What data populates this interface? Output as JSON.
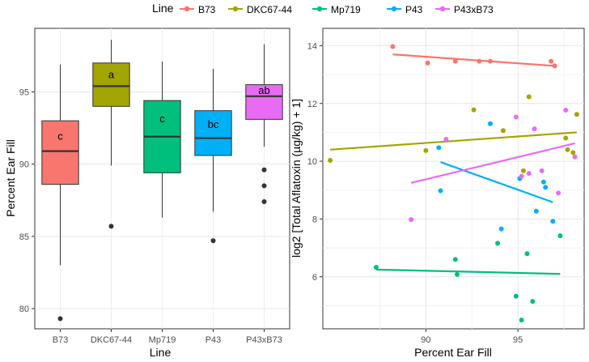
{
  "legend": {
    "title": "Line",
    "entries": [
      {
        "label": "B73",
        "color": "#F8766D"
      },
      {
        "label": "DKC67-44",
        "color": "#A3A500"
      },
      {
        "label": "Mp719",
        "color": "#00BF7D"
      },
      {
        "label": "P43",
        "color": "#00B0F6"
      },
      {
        "label": "P43xB73",
        "color": "#E76BF3"
      }
    ]
  },
  "chart_data": [
    {
      "type": "box",
      "xlabel": "Line",
      "ylabel": "Percent Ear Fill",
      "ylim": [
        78.6,
        99.4
      ],
      "yticks": [
        80,
        85,
        90,
        95
      ],
      "categories": [
        "B73",
        "DKC67-44",
        "Mp719",
        "P43",
        "P43xB73"
      ],
      "boxes": [
        {
          "name": "B73",
          "color": "#F8766D",
          "whisker_low": 83.0,
          "q1": 88.6,
          "median": 90.9,
          "q3": 93.0,
          "whisker_high": 96.9,
          "outliers": [
            79.3
          ],
          "group_label": "c"
        },
        {
          "name": "DKC67-44",
          "color": "#A3A500",
          "whisker_low": 89.9,
          "q1": 94.0,
          "median": 95.4,
          "q3": 97.0,
          "whisker_high": 98.6,
          "outliers": [
            85.7
          ],
          "group_label": "a"
        },
        {
          "name": "Mp719",
          "color": "#00BF7D",
          "whisker_low": 86.3,
          "q1": 89.4,
          "median": 91.9,
          "q3": 94.4,
          "whisker_high": 97.1,
          "outliers": [],
          "group_label": "c"
        },
        {
          "name": "P43",
          "color": "#00B0F6",
          "whisker_low": 86.7,
          "q1": 90.6,
          "median": 91.8,
          "q3": 93.7,
          "whisker_high": 96.6,
          "outliers": [
            84.7
          ],
          "group_label": "bc"
        },
        {
          "name": "P43xB73",
          "color": "#E76BF3",
          "whisker_low": 91.2,
          "q1": 93.1,
          "median": 94.7,
          "q3": 95.5,
          "whisker_high": 98.3,
          "outliers": [
            89.6,
            88.5,
            87.4
          ],
          "group_label": "ab"
        }
      ]
    },
    {
      "type": "scatter",
      "xlabel": "Percent Ear Fill",
      "ylabel": "log2 [Total Aflatoxin (µg/kg) + 1]",
      "xlim": [
        84.4,
        98.6
      ],
      "ylim": [
        4.2,
        14.6
      ],
      "xticks": [
        90,
        95
      ],
      "yticks": [
        6,
        8,
        10,
        12,
        14
      ],
      "series": [
        {
          "name": "B73",
          "color": "#F8766D",
          "points": [
            [
              88.2,
              13.97
            ],
            [
              90.1,
              13.4
            ],
            [
              91.6,
              13.46
            ],
            [
              92.9,
              13.46
            ],
            [
              93.5,
              13.46
            ],
            [
              96.8,
              13.46
            ],
            [
              97.0,
              13.3
            ]
          ],
          "fit": [
            [
              88.2,
              13.7
            ],
            [
              97.0,
              13.3
            ]
          ]
        },
        {
          "name": "DKC67-44",
          "color": "#A3A500",
          "points": [
            [
              84.8,
              10.03
            ],
            [
              90.0,
              10.37
            ],
            [
              92.6,
              11.78
            ],
            [
              94.2,
              11.06
            ],
            [
              95.3,
              9.67
            ],
            [
              95.6,
              12.23
            ],
            [
              97.6,
              10.8
            ],
            [
              97.7,
              10.4
            ],
            [
              98.0,
              10.3
            ],
            [
              98.2,
              11.62
            ]
          ],
          "fit": [
            [
              84.8,
              10.4
            ],
            [
              98.2,
              11.0
            ]
          ]
        },
        {
          "name": "Mp719",
          "color": "#00BF7D",
          "points": [
            [
              87.3,
              6.33
            ],
            [
              91.6,
              6.6
            ],
            [
              91.7,
              6.08
            ],
            [
              93.9,
              7.16
            ],
            [
              94.9,
              5.33
            ],
            [
              95.2,
              4.5
            ],
            [
              95.5,
              6.8
            ],
            [
              95.8,
              5.15
            ],
            [
              97.3,
              7.42
            ]
          ],
          "fit": [
            [
              87.3,
              6.25
            ],
            [
              97.3,
              6.1
            ]
          ]
        },
        {
          "name": "P43",
          "color": "#00B0F6",
          "points": [
            [
              90.7,
              10.47
            ],
            [
              90.8,
              8.98
            ],
            [
              93.5,
              11.3
            ],
            [
              94.1,
              7.66
            ],
            [
              95.1,
              9.4
            ],
            [
              96.0,
              8.27
            ],
            [
              96.4,
              9.28
            ],
            [
              96.5,
              9.1
            ],
            [
              96.9,
              7.92
            ]
          ],
          "fit": [
            [
              90.8,
              9.97
            ],
            [
              96.9,
              8.58
            ]
          ]
        },
        {
          "name": "P43xB73",
          "color": "#E76BF3",
          "points": [
            [
              89.2,
              7.98
            ],
            [
              91.1,
              10.76
            ],
            [
              94.9,
              11.53
            ],
            [
              95.2,
              9.48
            ],
            [
              95.6,
              9.58
            ],
            [
              95.9,
              11.12
            ],
            [
              96.3,
              9.67
            ],
            [
              97.2,
              8.9
            ],
            [
              97.6,
              11.77
            ],
            [
              98.1,
              10.15
            ]
          ],
          "fit": [
            [
              89.2,
              9.25
            ],
            [
              98.1,
              10.62
            ]
          ]
        }
      ]
    }
  ]
}
